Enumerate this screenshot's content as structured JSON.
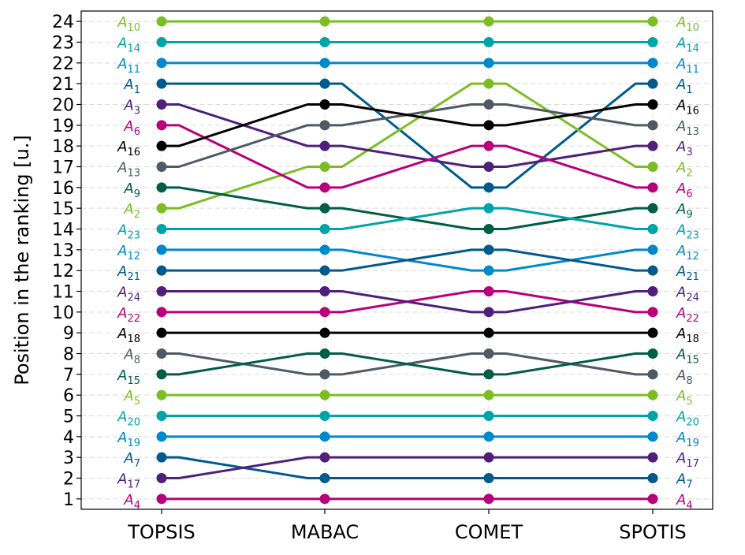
{
  "chart_data": {
    "type": "line",
    "title": "",
    "xlabel": "",
    "ylabel": "Position in the ranking [u.]",
    "categories": [
      "TOPSIS",
      "MABAC",
      "COMET",
      "SPOTIS"
    ],
    "ylim": [
      0.5,
      24.5
    ],
    "yticks": [
      1,
      2,
      3,
      4,
      5,
      6,
      7,
      8,
      9,
      10,
      11,
      12,
      13,
      14,
      15,
      16,
      17,
      18,
      19,
      20,
      21,
      22,
      23,
      24
    ],
    "grid": "horizontal dashed",
    "legend": "none",
    "series": [
      {
        "name": "A",
        "sub": "1",
        "color": "#005a8c",
        "values": [
          21,
          21,
          16,
          21
        ]
      },
      {
        "name": "A",
        "sub": "2",
        "color": "#7cbd26",
        "values": [
          15,
          17,
          21,
          17
        ]
      },
      {
        "name": "A",
        "sub": "3",
        "color": "#4f1f7a",
        "values": [
          20,
          18,
          17,
          18
        ]
      },
      {
        "name": "A",
        "sub": "4",
        "color": "#b8007a",
        "values": [
          1,
          1,
          1,
          1
        ]
      },
      {
        "name": "A",
        "sub": "5",
        "color": "#7cbd26",
        "values": [
          6,
          6,
          6,
          6
        ]
      },
      {
        "name": "A",
        "sub": "6",
        "color": "#b8007a",
        "values": [
          19,
          16,
          18,
          16
        ]
      },
      {
        "name": "A",
        "sub": "7",
        "color": "#005a8c",
        "values": [
          3,
          2,
          2,
          2
        ]
      },
      {
        "name": "A",
        "sub": "8",
        "color": "#4e5a66",
        "values": [
          8,
          7,
          8,
          7
        ]
      },
      {
        "name": "A",
        "sub": "9",
        "color": "#005e46",
        "values": [
          16,
          15,
          14,
          15
        ]
      },
      {
        "name": "A",
        "sub": "10",
        "color": "#7cbd26",
        "values": [
          24,
          24,
          24,
          24
        ]
      },
      {
        "name": "A",
        "sub": "11",
        "color": "#0088cc",
        "values": [
          22,
          22,
          22,
          22
        ]
      },
      {
        "name": "A",
        "sub": "12",
        "color": "#0088cc",
        "values": [
          13,
          13,
          12,
          13
        ]
      },
      {
        "name": "A",
        "sub": "13",
        "color": "#4e5a66",
        "values": [
          17,
          19,
          20,
          19
        ]
      },
      {
        "name": "A",
        "sub": "14",
        "color": "#00a4a8",
        "values": [
          23,
          23,
          23,
          23
        ]
      },
      {
        "name": "A",
        "sub": "15",
        "color": "#005e46",
        "values": [
          7,
          8,
          7,
          8
        ]
      },
      {
        "name": "A",
        "sub": "16",
        "color": "#000000",
        "values": [
          18,
          20,
          19,
          20
        ]
      },
      {
        "name": "A",
        "sub": "17",
        "color": "#4f1f7a",
        "values": [
          2,
          3,
          3,
          3
        ]
      },
      {
        "name": "A",
        "sub": "18",
        "color": "#000000",
        "values": [
          9,
          9,
          9,
          9
        ]
      },
      {
        "name": "A",
        "sub": "19",
        "color": "#0088cc",
        "values": [
          4,
          4,
          4,
          4
        ]
      },
      {
        "name": "A",
        "sub": "20",
        "color": "#00a4a8",
        "values": [
          5,
          5,
          5,
          5
        ]
      },
      {
        "name": "A",
        "sub": "21",
        "color": "#005a8c",
        "values": [
          12,
          12,
          13,
          12
        ]
      },
      {
        "name": "A",
        "sub": "22",
        "color": "#b8007a",
        "values": [
          10,
          10,
          11,
          10
        ]
      },
      {
        "name": "A",
        "sub": "23",
        "color": "#00a4a8",
        "values": [
          14,
          14,
          15,
          14
        ]
      },
      {
        "name": "A",
        "sub": "24",
        "color": "#4f1f7a",
        "values": [
          11,
          11,
          10,
          11
        ]
      }
    ]
  }
}
